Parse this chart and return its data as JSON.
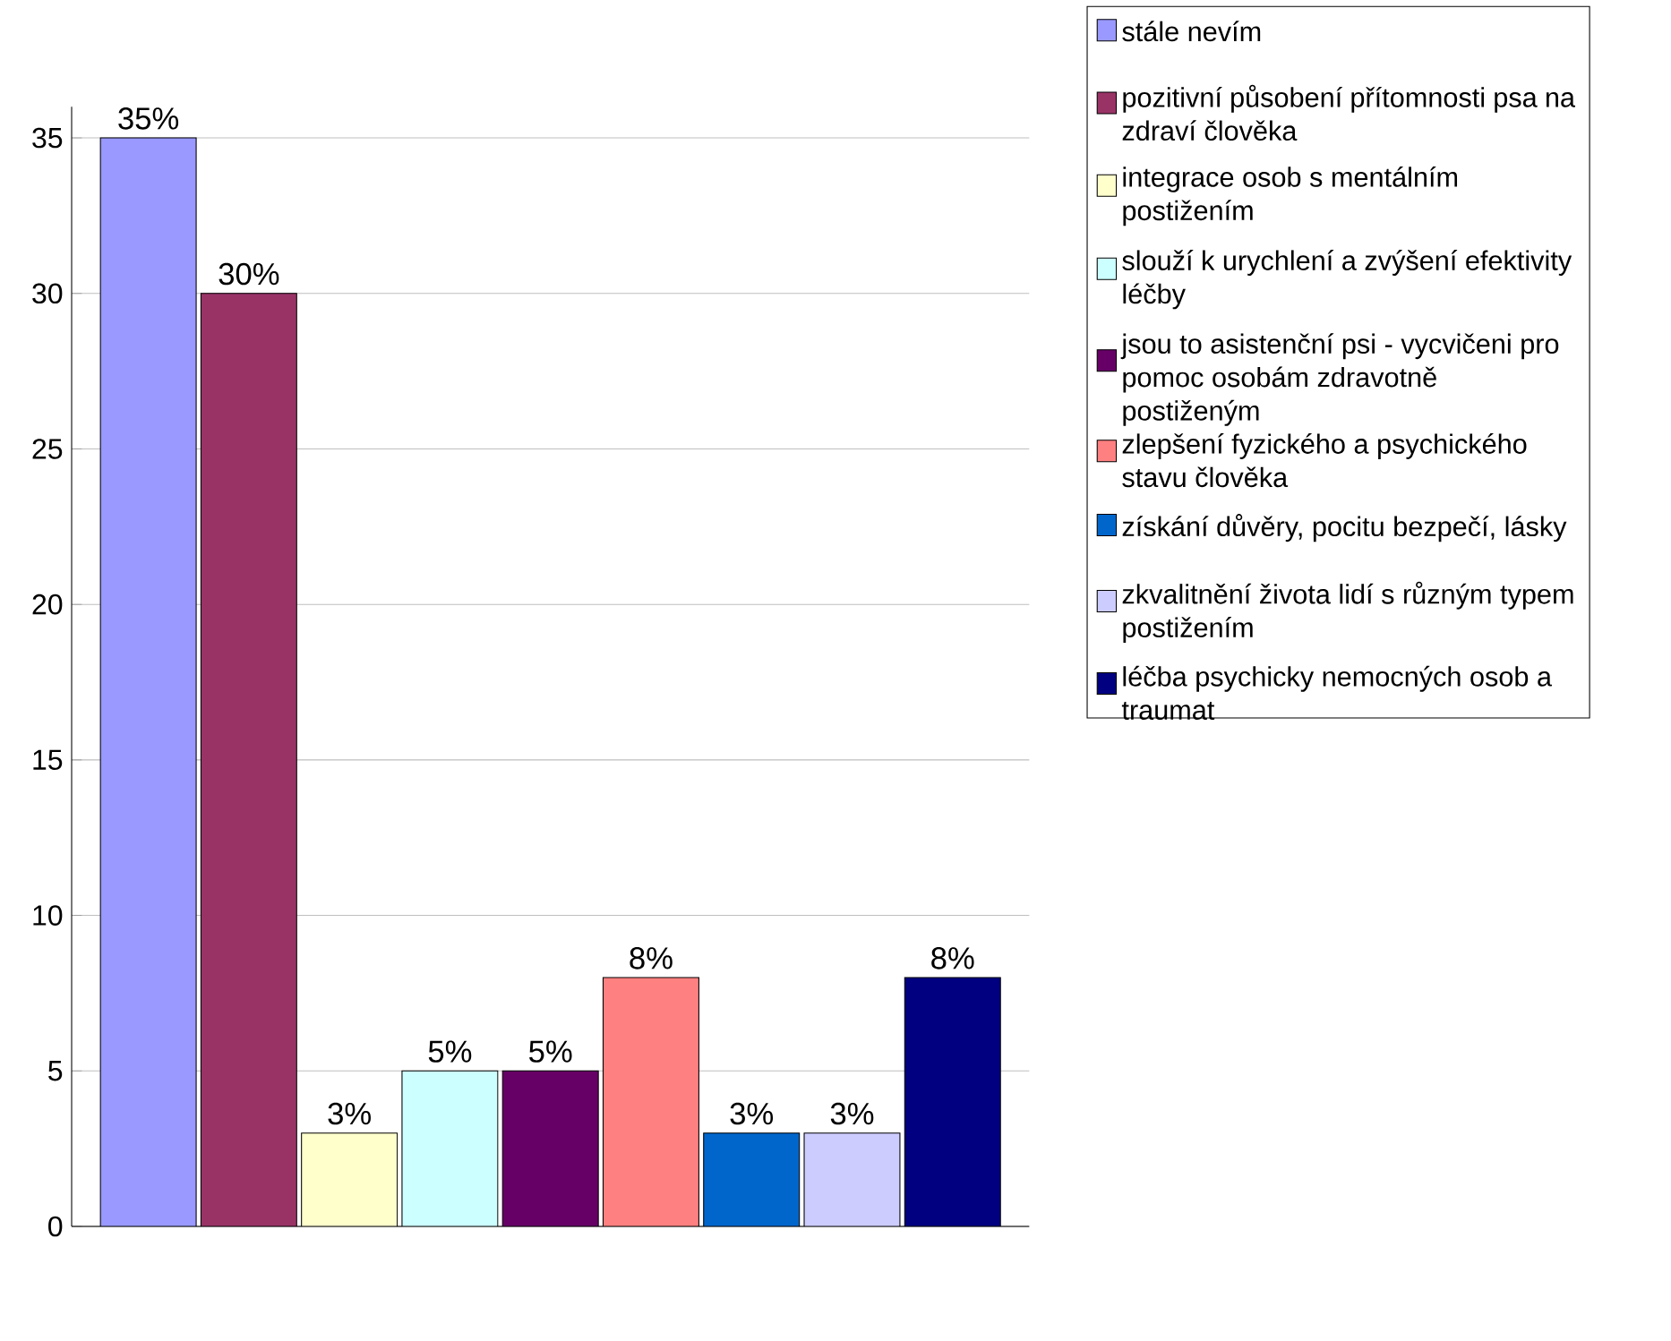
{
  "chart_data": {
    "type": "bar",
    "categories": [
      null
    ],
    "series": [
      {
        "name": "stále nevím",
        "color": "#9999ff",
        "values": [
          35
        ],
        "value_labels": [
          "35%"
        ]
      },
      {
        "name": "pozitivní působení přítomnosti psa na zdraví člověka",
        "color": "#993366",
        "values": [
          30
        ],
        "value_labels": [
          "30%"
        ]
      },
      {
        "name": "integrace osob s mentálním postižením",
        "color": "#ffffcc",
        "values": [
          3
        ],
        "value_labels": [
          "3%"
        ]
      },
      {
        "name": "slouží k urychlení a zvýšení efektivity léčby",
        "color": "#ccffff",
        "values": [
          5
        ],
        "value_labels": [
          "5%"
        ]
      },
      {
        "name": "jsou to asistenční psi - vycvičeni pro pomoc osobám zdravotně postiženým",
        "color": "#660066",
        "values": [
          5
        ],
        "value_labels": [
          "5%"
        ]
      },
      {
        "name": "zlepšení fyzického a psychického stavu člověka",
        "color": "#ff8080",
        "values": [
          8
        ],
        "value_labels": [
          "8%"
        ]
      },
      {
        "name": "získání důvěry, pocitu bezpečí, lásky",
        "color": "#0066cc",
        "values": [
          3
        ],
        "value_labels": [
          "3%"
        ]
      },
      {
        "name": "zkvalitnění života lidí s různým typem postižením",
        "color": "#ccccff",
        "values": [
          3
        ],
        "value_labels": [
          "3%"
        ]
      },
      {
        "name": "léčba psychicky nemocných osob a traumat",
        "color": "#000080",
        "values": [
          8
        ],
        "value_labels": [
          "8%"
        ]
      }
    ],
    "ylim": [
      0,
      36
    ],
    "yticks": [
      0,
      5,
      10,
      15,
      20,
      25,
      30,
      35
    ],
    "grid": "y",
    "legend": "right",
    "tick_labels": "y"
  }
}
